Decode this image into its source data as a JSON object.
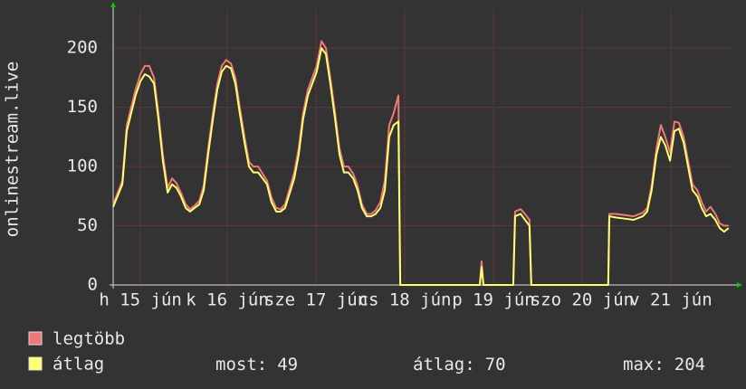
{
  "chart_data": {
    "type": "line",
    "ylabel": "onlinestream.live",
    "xlim": [
      0,
      168
    ],
    "xticks": [
      {
        "value": 7.4,
        "label": "h 15 jún"
      },
      {
        "value": 31.0,
        "label": "k 16 jún"
      },
      {
        "value": 55.1,
        "label": "sze 17 jún"
      },
      {
        "value": 79.2,
        "label": "cs 18 jún"
      },
      {
        "value": 103.3,
        "label": "p 19 jún"
      },
      {
        "value": 127.4,
        "label": "szo 20 jún"
      },
      {
        "value": 151.5,
        "label": "v 21 jún"
      }
    ],
    "ylim": [
      0,
      233
    ],
    "yticks": [
      0,
      50,
      100,
      150,
      200
    ],
    "grid": true,
    "x": [
      0,
      2.5,
      3.7,
      4.9,
      6.1,
      7.4,
      8.6,
      9.8,
      11.1,
      12.3,
      13.5,
      14.8,
      16,
      17.2,
      18.4,
      19.7,
      20.9,
      22.1,
      23.4,
      24.6,
      25.8,
      27.1,
      28.3,
      29.5,
      30.7,
      32,
      33.2,
      34.4,
      35.7,
      36.9,
      38.1,
      39.4,
      40.6,
      41.8,
      43,
      44.3,
      45.5,
      46.7,
      48,
      49.2,
      50.4,
      51.6,
      52.9,
      54.1,
      55.3,
      56.6,
      57.8,
      59,
      60.3,
      61.5,
      62.7,
      63.9,
      65.2,
      66.4,
      67.6,
      68.9,
      70.1,
      71.3,
      72.6,
      73.8,
      75,
      76.2,
      77.5,
      78,
      99.6,
      100.1,
      100.6,
      108.7,
      109.2,
      110.7,
      111.9,
      113.1,
      113.6,
      134.5,
      134.8,
      136.5,
      139,
      141.4,
      143.9,
      145.1,
      146.3,
      147.6,
      148.8,
      150,
      151.3,
      152.5,
      153.7,
      155,
      156.2,
      157.4,
      158.7,
      159.9,
      161.1,
      162.3,
      163.6,
      164.8,
      166,
      167.2
    ],
    "series": [
      {
        "name": "legtöbb",
        "color": "#f07878",
        "values": [
          68,
          88,
          135,
          150,
          165,
          178,
          185,
          185,
          175,
          145,
          110,
          82,
          90,
          86,
          78,
          68,
          64,
          67,
          71,
          84,
          115,
          145,
          170,
          185,
          190,
          187,
          175,
          150,
          125,
          104,
          100,
          100,
          94,
          88,
          74,
          65,
          64,
          68,
          82,
          95,
          115,
          145,
          165,
          175,
          185,
          206,
          200,
          175,
          145,
          115,
          100,
          100,
          94,
          84,
          68,
          60,
          60,
          63,
          70,
          88,
          135,
          145,
          160,
          0,
          0,
          20,
          0,
          0,
          62,
          64,
          60,
          55,
          0,
          0,
          60,
          60,
          59,
          58,
          61,
          65,
          84,
          115,
          135,
          125,
          112,
          138,
          137,
          125,
          105,
          85,
          80,
          70,
          62,
          66,
          60,
          52,
          50,
          50
        ]
      },
      {
        "name": "átlag",
        "color": "#ffff70",
        "values": [
          66,
          85,
          130,
          145,
          160,
          172,
          178,
          176,
          170,
          140,
          105,
          78,
          85,
          82,
          75,
          65,
          62,
          65,
          68,
          80,
          110,
          140,
          165,
          180,
          185,
          183,
          170,
          145,
          120,
          100,
          95,
          95,
          90,
          85,
          70,
          62,
          62,
          65,
          78,
          90,
          110,
          140,
          160,
          170,
          180,
          200,
          195,
          170,
          140,
          110,
          95,
          95,
          90,
          80,
          65,
          58,
          58,
          60,
          65,
          80,
          125,
          135,
          138,
          0,
          0,
          15,
          0,
          0,
          58,
          60,
          55,
          50,
          0,
          0,
          58,
          57,
          56,
          55,
          58,
          62,
          80,
          110,
          125,
          118,
          105,
          130,
          132,
          120,
          100,
          80,
          75,
          65,
          58,
          60,
          55,
          48,
          45,
          48
        ]
      }
    ],
    "stats": [
      {
        "label": "most:",
        "value": 49
      },
      {
        "label": "átlag:",
        "value": 70
      },
      {
        "label": "max:",
        "value": 204
      }
    ]
  }
}
